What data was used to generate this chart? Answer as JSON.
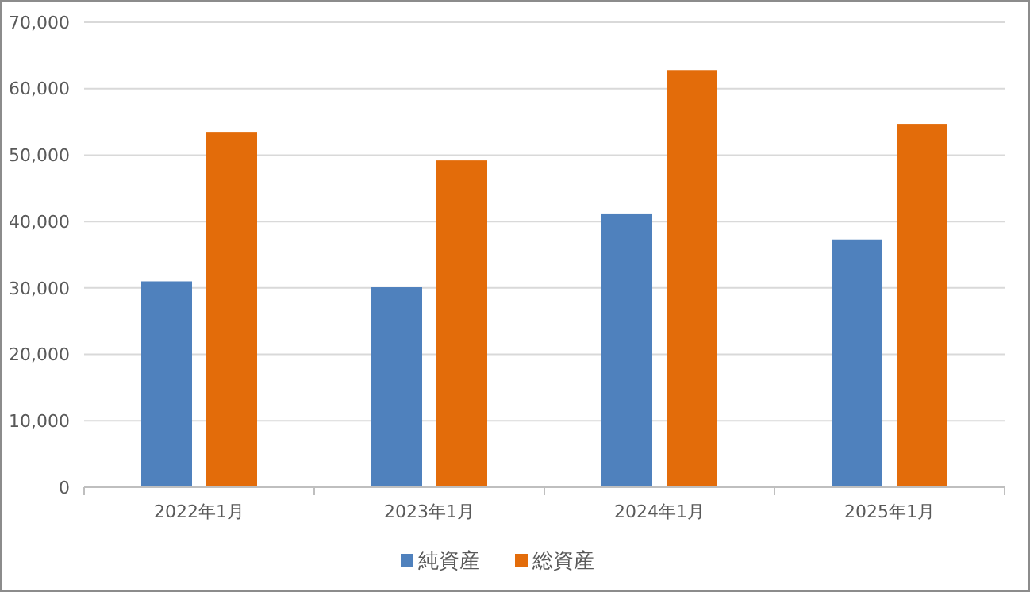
{
  "chart_data": {
    "type": "bar",
    "categories": [
      "2022年1月",
      "2023年1月",
      "2024年1月",
      "2025年1月"
    ],
    "series": [
      {
        "name": "純資産",
        "color": "#4f81bd",
        "values": [
          31000,
          30100,
          41100,
          37300
        ]
      },
      {
        "name": "総資産",
        "color": "#e36c0a",
        "values": [
          53500,
          49200,
          62800,
          54700
        ]
      }
    ],
    "ylim": [
      0,
      70000
    ],
    "yticks": [
      {
        "value": 0,
        "label": "0"
      },
      {
        "value": 10000,
        "label": "10,000"
      },
      {
        "value": 20000,
        "label": "20,000"
      },
      {
        "value": 30000,
        "label": "30,000"
      },
      {
        "value": 40000,
        "label": "40,000"
      },
      {
        "value": 50000,
        "label": "50,000"
      },
      {
        "value": 60000,
        "label": "60,000"
      },
      {
        "value": 70000,
        "label": "70,000"
      }
    ],
    "grid": "y",
    "legend": "bottom"
  }
}
